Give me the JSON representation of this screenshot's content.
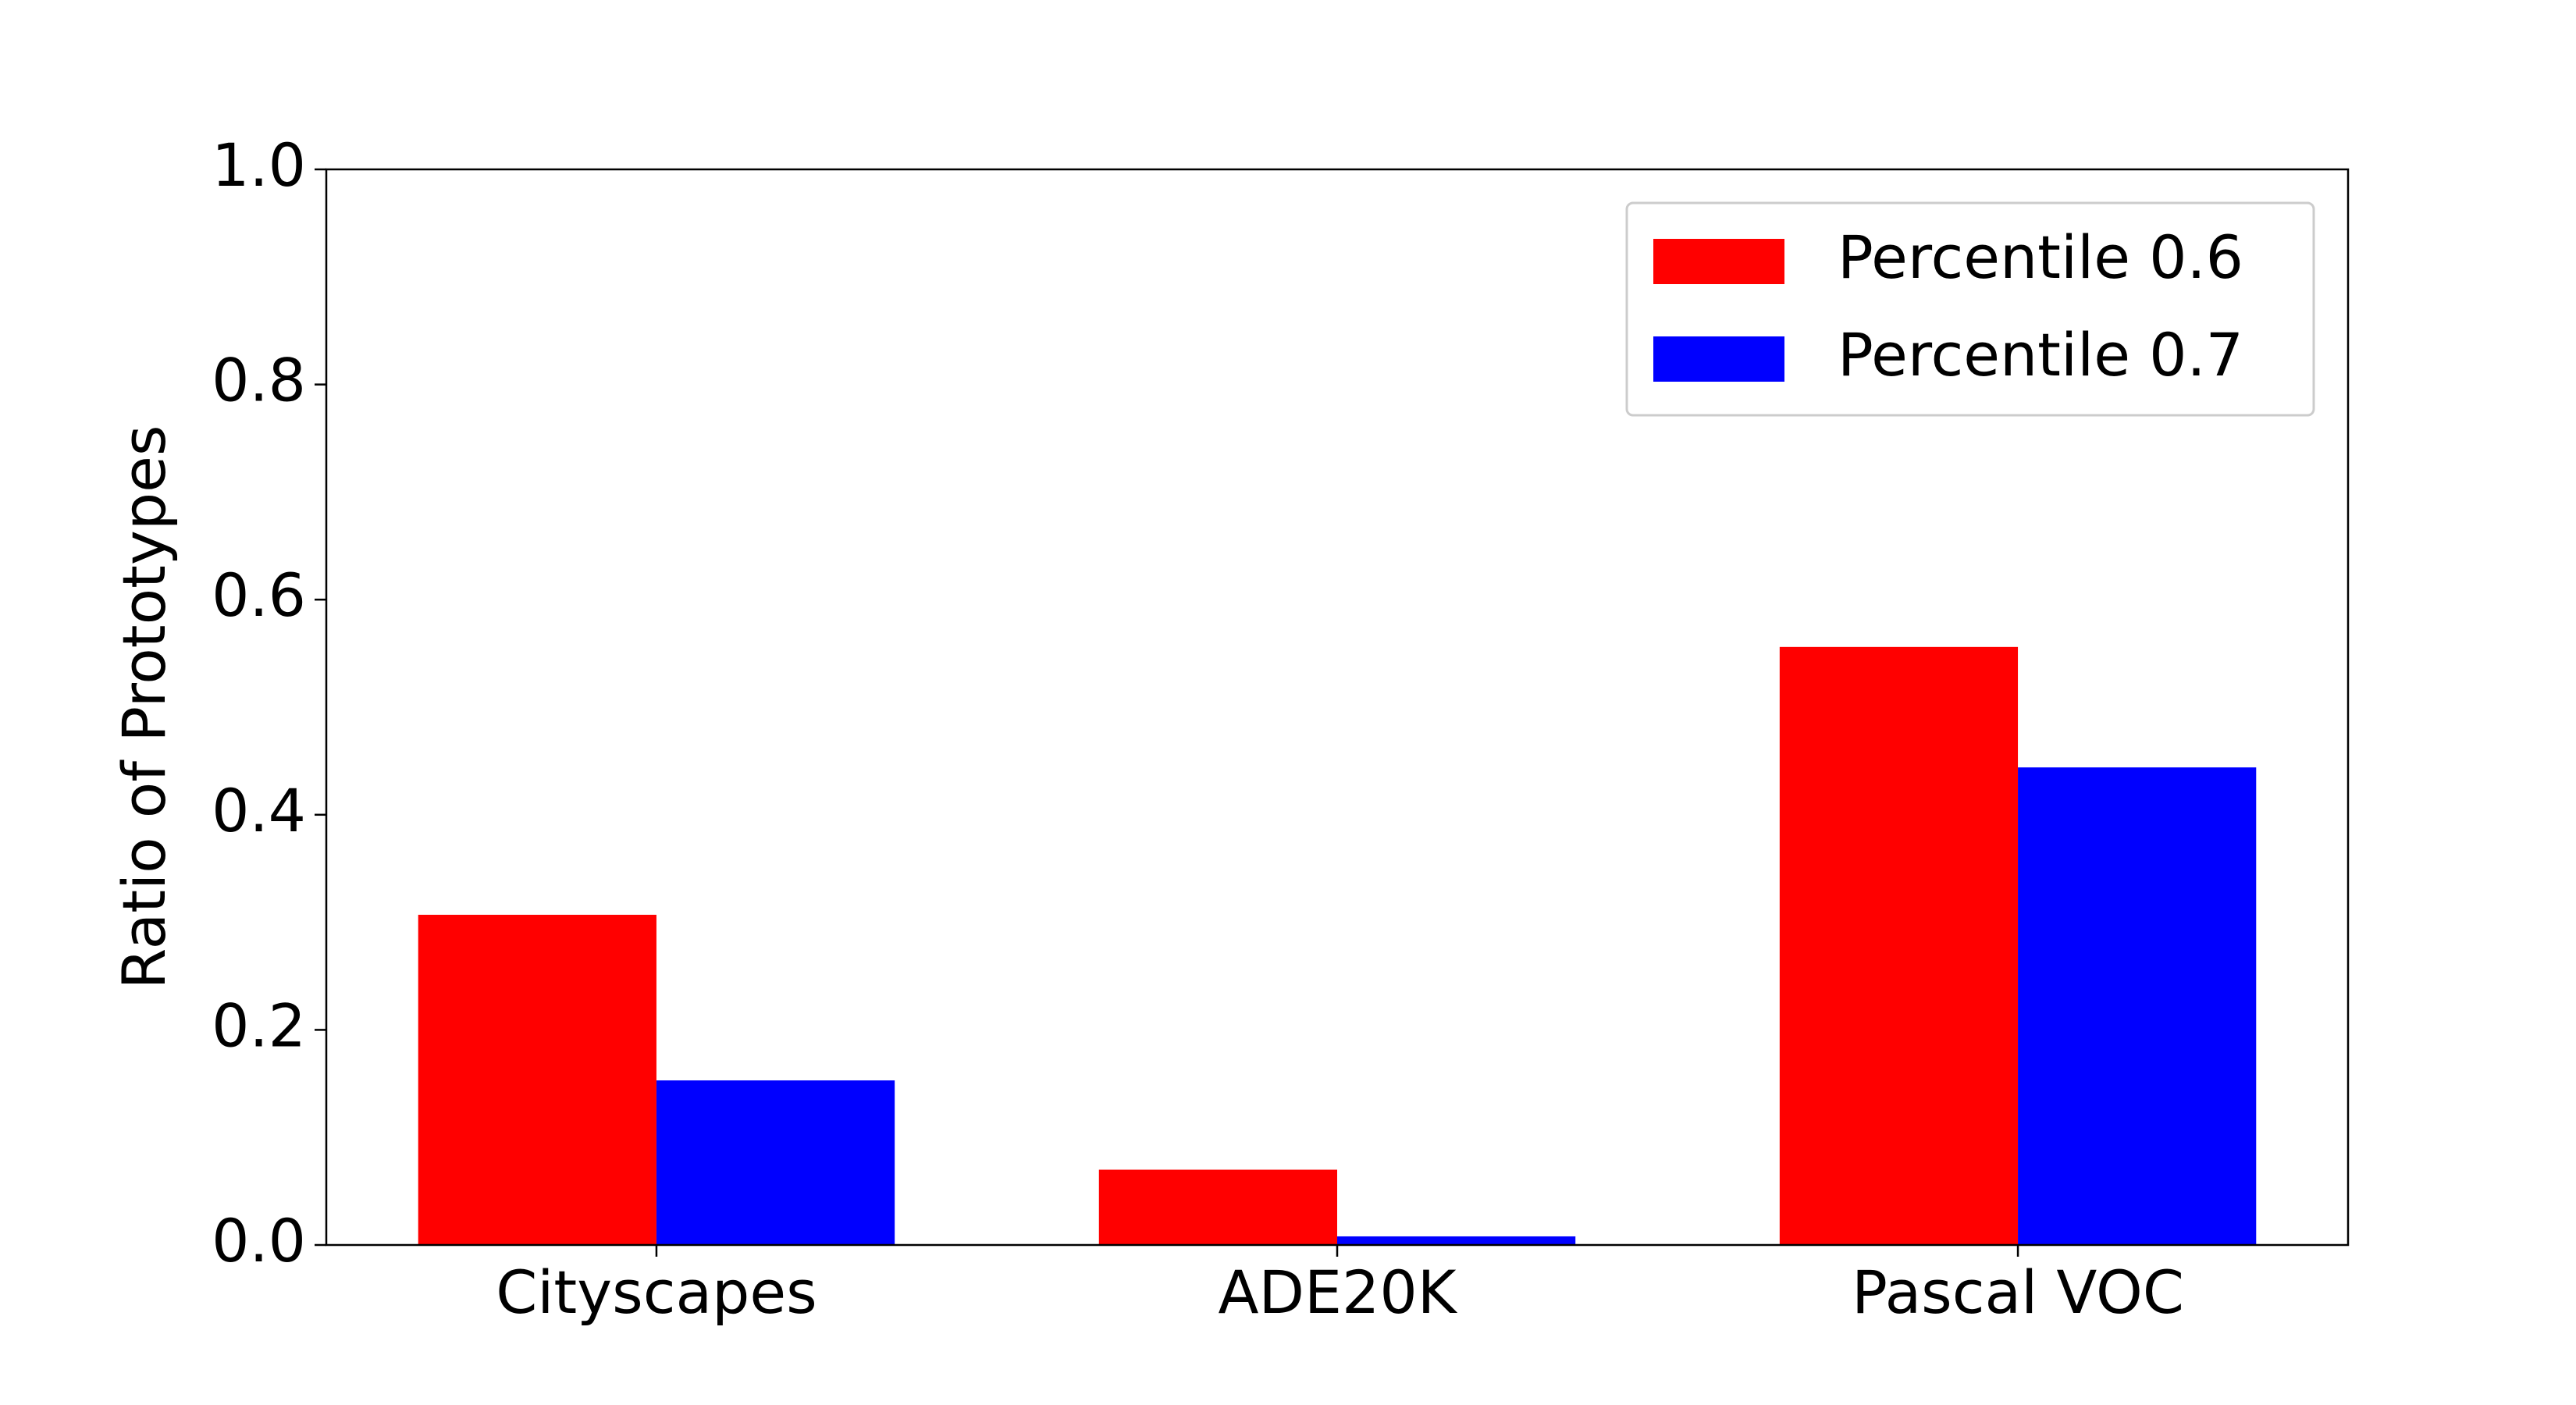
{
  "chart_data": {
    "type": "bar",
    "categories": [
      "Cityscapes",
      "ADE20K",
      "Pascal VOC"
    ],
    "series": [
      {
        "name": "Percentile 0.6",
        "color": "#ff0000",
        "values": [
          0.307,
          0.07,
          0.556
        ]
      },
      {
        "name": "Percentile 0.7",
        "color": "#0000ff",
        "values": [
          0.153,
          0.008,
          0.444
        ]
      }
    ],
    "ylabel": "Ratio of Prototypes",
    "ylim": [
      0,
      1
    ],
    "yticks": [
      {
        "value": 0,
        "label": "0.0"
      },
      0.2,
      0.4,
      0.6,
      0.8,
      {
        "value": 1,
        "label": "1.0"
      }
    ],
    "legend": "upper right"
  }
}
